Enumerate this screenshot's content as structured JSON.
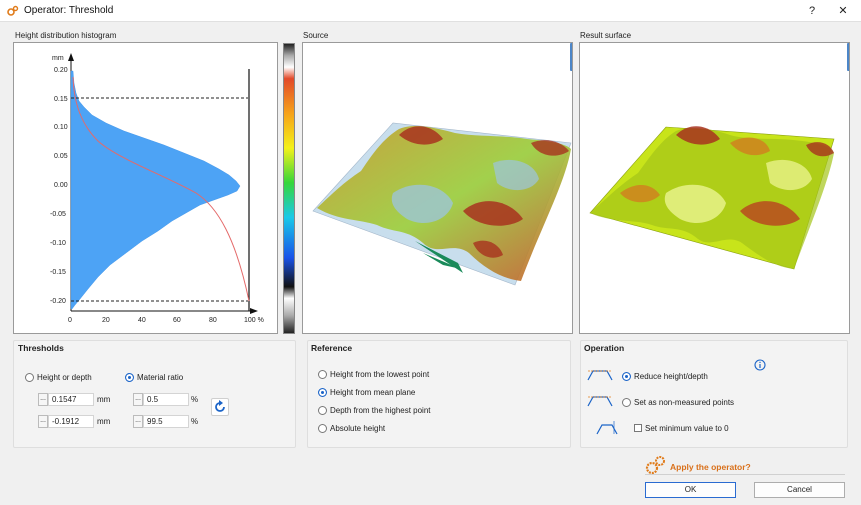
{
  "window": {
    "title": "Operator: Threshold",
    "help": "?",
    "close": "✕"
  },
  "panels": {
    "histogram_label": "Height distribution histogram",
    "source_label": "Source",
    "result_label": "Result surface"
  },
  "histogram": {
    "y_unit": "mm",
    "y_ticks": [
      "0.20",
      "0.15",
      "0.10",
      "0.05",
      "0.00",
      "-0.05",
      "-0.10",
      "-0.15",
      "-0.20"
    ],
    "x_ticks": [
      "0",
      "20",
      "40",
      "60",
      "80",
      "100 %"
    ],
    "upper_threshold_mm": 0.1547,
    "lower_threshold_mm": -0.1912,
    "colors": {
      "bars": "#4da3f5",
      "curve": "#e46a6a"
    }
  },
  "thresholds": {
    "title": "Thresholds",
    "mode_height": "Height or depth",
    "mode_ratio": "Material ratio",
    "selected": "ratio",
    "upper_value": "0.1547",
    "lower_value": "-0.1912",
    "upper_unit": "mm",
    "lower_unit": "mm",
    "upper_ratio": "0.5",
    "lower_ratio": "99.5",
    "ratio_unit": "%",
    "more": "..."
  },
  "reference": {
    "title": "Reference",
    "options": [
      "Height from the lowest point",
      "Height from mean plane",
      "Depth from the highest point",
      "Absolute height"
    ],
    "selected_index": 1
  },
  "operation": {
    "title": "Operation",
    "options": [
      "Reduce height/depth",
      "Set as non-measured points"
    ],
    "selected_index": 0,
    "checkbox_label": "Set minimum value to 0",
    "checkbox_checked": false,
    "info_icon": "info-icon"
  },
  "footer": {
    "apply_text": "Apply the operator?",
    "ok": "OK",
    "cancel": "Cancel"
  }
}
